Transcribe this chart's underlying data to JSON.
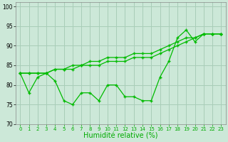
{
  "xlabel": "Humidité relative (%)",
  "xlim": [
    -0.5,
    23.5
  ],
  "ylim": [
    70,
    101
  ],
  "yticks": [
    70,
    75,
    80,
    85,
    90,
    95,
    100
  ],
  "xticks": [
    0,
    1,
    2,
    3,
    4,
    5,
    6,
    7,
    8,
    9,
    10,
    11,
    12,
    13,
    14,
    15,
    16,
    17,
    18,
    19,
    20,
    21,
    22,
    23
  ],
  "bg_color": "#cce8d8",
  "grid_color": "#a8cdb8",
  "line_color": "#00bb00",
  "line_straight1": [
    83,
    83,
    83,
    83,
    84,
    84,
    84,
    85,
    85,
    85,
    86,
    86,
    86,
    87,
    87,
    87,
    88,
    89,
    90,
    91,
    92,
    93,
    93,
    93
  ],
  "line_straight2": [
    83,
    83,
    83,
    83,
    84,
    84,
    85,
    85,
    86,
    86,
    87,
    87,
    87,
    88,
    88,
    88,
    89,
    90,
    91,
    92,
    92,
    93,
    93,
    93
  ],
  "line_zigzag": [
    83,
    78,
    82,
    83,
    81,
    76,
    75,
    78,
    78,
    76,
    80,
    80,
    77,
    77,
    76,
    76,
    82,
    86,
    92,
    94,
    91,
    93,
    93,
    93
  ]
}
